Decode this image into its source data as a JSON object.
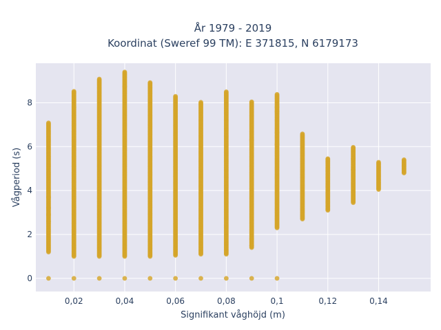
{
  "chart_data": {
    "type": "scatter",
    "title_lines": [
      "År 1979 - 2019",
      "Koordinat (Sweref 99 TM): E 371815, N 6179173"
    ],
    "xlabel": "Signifikant våghöjd (m)",
    "ylabel": "Vågperiod (s)",
    "xlim": [
      0.005,
      0.1605
    ],
    "ylim": [
      -0.6,
      9.8
    ],
    "x_ticks": [
      0.02,
      0.04,
      0.06,
      0.08,
      0.1,
      0.12,
      0.14
    ],
    "x_tick_labels": [
      "0,02",
      "0,04",
      "0,06",
      "0,08",
      "0,1",
      "0,12",
      "0,14"
    ],
    "y_ticks": [
      0,
      2,
      4,
      6,
      8
    ],
    "y_tick_labels": [
      "0",
      "2",
      "4",
      "6",
      "8"
    ],
    "grid": true,
    "background": "#e5e5f0",
    "marker_color": "#d4a52a",
    "series": [
      {
        "columns": [
          {
            "x": 0.01,
            "min": 1.2,
            "max": 7.1,
            "zero": true
          },
          {
            "x": 0.02,
            "min": 1.0,
            "max": 8.55,
            "zero": true
          },
          {
            "x": 0.03,
            "min": 1.0,
            "max": 9.1,
            "zero": true
          },
          {
            "x": 0.04,
            "min": 1.0,
            "max": 9.4,
            "zero": true
          },
          {
            "x": 0.05,
            "min": 1.0,
            "max": 8.95,
            "zero": true
          },
          {
            "x": 0.06,
            "min": 1.05,
            "max": 8.3,
            "zero": true
          },
          {
            "x": 0.07,
            "min": 1.1,
            "max": 8.05,
            "zero": true
          },
          {
            "x": 0.08,
            "min": 1.1,
            "max": 8.5,
            "zero": true
          },
          {
            "x": 0.09,
            "min": 1.4,
            "max": 8.05,
            "zero": true
          },
          {
            "x": 0.1,
            "min": 2.3,
            "max": 8.4,
            "zero": true
          },
          {
            "x": 0.11,
            "min": 2.7,
            "max": 6.6,
            "zero": false
          },
          {
            "x": 0.12,
            "min": 3.1,
            "max": 5.45,
            "zero": false
          },
          {
            "x": 0.13,
            "min": 3.45,
            "max": 6.0,
            "zero": false
          },
          {
            "x": 0.14,
            "min": 4.05,
            "max": 5.3,
            "zero": false
          },
          {
            "x": 0.15,
            "min": 4.8,
            "max": 5.4,
            "zero": false
          }
        ],
        "outliers": [
          {
            "x": 0.01,
            "y": 3.2
          },
          {
            "x": 0.01,
            "y": 2.9
          },
          {
            "x": 0.01,
            "y": 2.6
          },
          {
            "x": 0.01,
            "y": 3.7
          },
          {
            "x": 0.02,
            "y": 7.8
          },
          {
            "x": 0.04,
            "y": 8.75
          },
          {
            "x": 0.09,
            "y": 6.3
          },
          {
            "x": 0.09,
            "y": 1.8
          },
          {
            "x": 0.09,
            "y": 1.5
          },
          {
            "x": 0.1,
            "y": 6.1
          },
          {
            "x": 0.1,
            "y": 6.65
          },
          {
            "x": 0.1,
            "y": 7.6
          },
          {
            "x": 0.1,
            "y": 7.8
          },
          {
            "x": 0.12,
            "y": 5.45
          },
          {
            "x": 0.13,
            "y": 5.45
          },
          {
            "x": 0.13,
            "y": 4.95
          }
        ]
      }
    ]
  }
}
